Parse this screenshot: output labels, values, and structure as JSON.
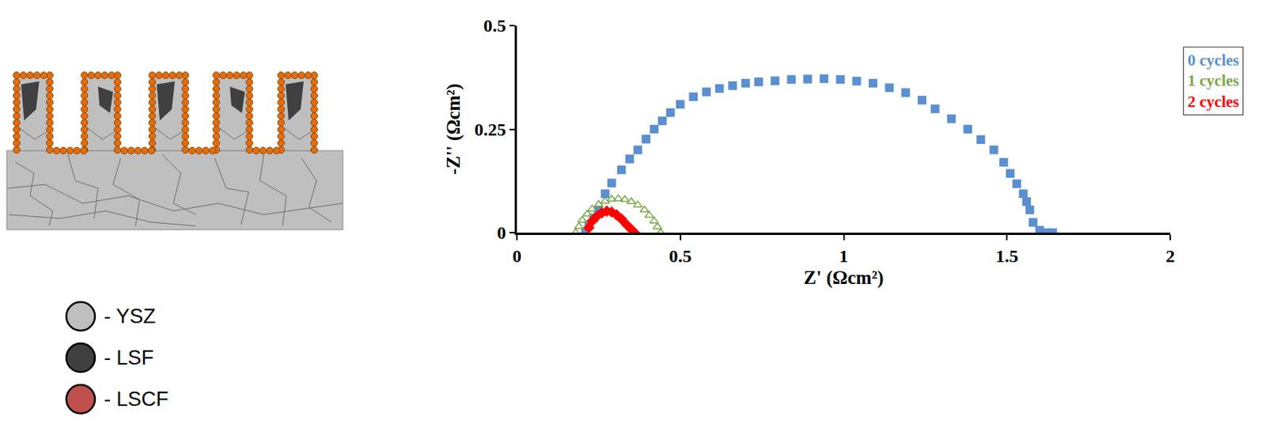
{
  "chart_data": {
    "type": "scatter",
    "x_label": "Z' (Ωcm²)",
    "y_label": "-Z'' (Ωcm²)",
    "xlim": [
      0,
      2
    ],
    "xticks": [
      0,
      0.5,
      1,
      1.5,
      2
    ],
    "ylim": [
      0,
      0.5
    ],
    "yticks": [
      0,
      0.25,
      0.5
    ],
    "grid": false,
    "legend": "right",
    "series": [
      {
        "name": "0 cycles",
        "color": "#5b8fd0",
        "marker": "square",
        "x": [
          0.21,
          0.22,
          0.235,
          0.25,
          0.27,
          0.29,
          0.32,
          0.345,
          0.37,
          0.395,
          0.42,
          0.445,
          0.47,
          0.5,
          0.54,
          0.58,
          0.62,
          0.66,
          0.7,
          0.74,
          0.79,
          0.84,
          0.89,
          0.94,
          0.99,
          1.04,
          1.09,
          1.14,
          1.19,
          1.24,
          1.28,
          1.33,
          1.38,
          1.42,
          1.46,
          1.49,
          1.51,
          1.53,
          1.55,
          1.56,
          1.57,
          1.58,
          1.6,
          1.62,
          1.64
        ],
        "values": [
          0,
          0.018,
          0.036,
          0.055,
          0.094,
          0.12,
          0.152,
          0.178,
          0.2,
          0.226,
          0.25,
          0.27,
          0.29,
          0.31,
          0.328,
          0.34,
          0.348,
          0.355,
          0.361,
          0.364,
          0.367,
          0.37,
          0.371,
          0.372,
          0.37,
          0.366,
          0.361,
          0.35,
          0.338,
          0.32,
          0.299,
          0.275,
          0.25,
          0.225,
          0.2,
          0.17,
          0.143,
          0.118,
          0.094,
          0.075,
          0.055,
          0.025,
          0.006,
          0,
          0
        ]
      },
      {
        "name": "1 cycles",
        "color": "#7ca84a",
        "marker": "triangle-open",
        "x": [
          0.18,
          0.19,
          0.2,
          0.215,
          0.23,
          0.25,
          0.27,
          0.29,
          0.31,
          0.33,
          0.35,
          0.37,
          0.39,
          0.405,
          0.42,
          0.43,
          0.44
        ],
        "values": [
          0,
          0.015,
          0.03,
          0.045,
          0.057,
          0.068,
          0.076,
          0.081,
          0.082,
          0.08,
          0.075,
          0.067,
          0.055,
          0.042,
          0.028,
          0.014,
          0
        ]
      },
      {
        "name": "2 cycles",
        "color": "#ff0000",
        "marker": "diamond",
        "x": [
          0.22,
          0.23,
          0.245,
          0.26,
          0.275,
          0.29,
          0.305,
          0.32,
          0.335,
          0.35,
          0.36
        ],
        "values": [
          0.012,
          0.028,
          0.04,
          0.048,
          0.052,
          0.05,
          0.043,
          0.033,
          0.02,
          0.008,
          0
        ]
      }
    ]
  },
  "schematic": {
    "legend": [
      {
        "label": "- YSZ",
        "color": "#bfbfbf"
      },
      {
        "label": "- LSF",
        "color": "#404040"
      },
      {
        "label": "- LSCF",
        "color": "#c0504d"
      }
    ]
  }
}
